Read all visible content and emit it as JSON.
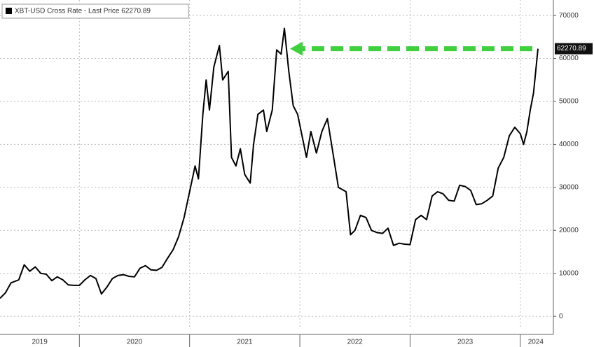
{
  "chart_data": {
    "type": "line",
    "x": [
      2019.28,
      2019.33,
      2019.38,
      2019.45,
      2019.5,
      2019.55,
      2019.6,
      2019.65,
      2019.7,
      2019.75,
      2019.8,
      2019.85,
      2019.9,
      2019.95,
      2020.0,
      2020.05,
      2020.1,
      2020.15,
      2020.2,
      2020.25,
      2020.3,
      2020.35,
      2020.4,
      2020.45,
      2020.5,
      2020.55,
      2020.6,
      2020.65,
      2020.7,
      2020.75,
      2020.8,
      2020.85,
      2020.9,
      2020.95,
      2021.0,
      2021.05,
      2021.08,
      2021.12,
      2021.15,
      2021.18,
      2021.22,
      2021.27,
      2021.3,
      2021.35,
      2021.38,
      2021.42,
      2021.46,
      2021.5,
      2021.55,
      2021.58,
      2021.62,
      2021.67,
      2021.7,
      2021.75,
      2021.79,
      2021.83,
      2021.86,
      2021.9,
      2021.94,
      2021.98,
      2022.02,
      2022.06,
      2022.1,
      2022.15,
      2022.2,
      2022.25,
      2022.3,
      2022.35,
      2022.42,
      2022.46,
      2022.5,
      2022.55,
      2022.6,
      2022.65,
      2022.7,
      2022.75,
      2022.8,
      2022.85,
      2022.9,
      2022.95,
      2023.0,
      2023.05,
      2023.1,
      2023.15,
      2023.2,
      2023.25,
      2023.3,
      2023.35,
      2023.4,
      2023.45,
      2023.5,
      2023.55,
      2023.6,
      2023.65,
      2023.7,
      2023.75,
      2023.8,
      2023.85,
      2023.9,
      2023.95,
      2024.0,
      2024.03,
      2024.06,
      2024.09,
      2024.12,
      2024.16
    ],
    "series": [
      {
        "name": "XBT-USD Cross Rate - Last Price 62270.89",
        "color": "#000000",
        "values": [
          4200,
          5500,
          7800,
          8500,
          12000,
          10500,
          11500,
          10000,
          9800,
          8300,
          9200,
          8500,
          7300,
          7200,
          7200,
          8500,
          9500,
          8800,
          5200,
          6800,
          8800,
          9500,
          9700,
          9300,
          9200,
          11200,
          11800,
          10800,
          10700,
          11400,
          13500,
          15500,
          18500,
          23000,
          29000,
          35000,
          32000,
          47000,
          55000,
          48000,
          58000,
          63000,
          55000,
          57000,
          37000,
          35000,
          39000,
          33000,
          31000,
          40000,
          47000,
          48000,
          43000,
          48000,
          62000,
          61000,
          67000,
          57000,
          49000,
          47000,
          42000,
          37000,
          43000,
          38000,
          43000,
          46000,
          38000,
          30000,
          29000,
          19000,
          20000,
          23500,
          23000,
          20000,
          19500,
          19300,
          20500,
          16500,
          17000,
          16800,
          16700,
          22500,
          23500,
          22500,
          28000,
          29000,
          28500,
          27000,
          26800,
          30500,
          30200,
          29300,
          26000,
          26200,
          27000,
          28000,
          34500,
          37000,
          42000,
          44000,
          42500,
          40000,
          43000,
          48000,
          52000,
          62270.89
        ]
      }
    ],
    "xlim": [
      2019.28,
      2024.3
    ],
    "xticks": [
      {
        "value": 2019.64,
        "label": "2019"
      },
      {
        "value": 2020.5,
        "label": "2020"
      },
      {
        "value": 2021.5,
        "label": "2021"
      },
      {
        "value": 2022.5,
        "label": "2022"
      },
      {
        "value": 2023.5,
        "label": "2023"
      },
      {
        "value": 2024.14,
        "label": "2024"
      }
    ],
    "xticks_minor": [
      2020,
      2021,
      2022,
      2023,
      2024
    ],
    "ylim": [
      -2900,
      73600
    ],
    "yticks": [
      0,
      10000,
      20000,
      30000,
      40000,
      50000,
      60000,
      70000
    ],
    "grid": true,
    "arrow_color": "#3fcf3f"
  }
}
